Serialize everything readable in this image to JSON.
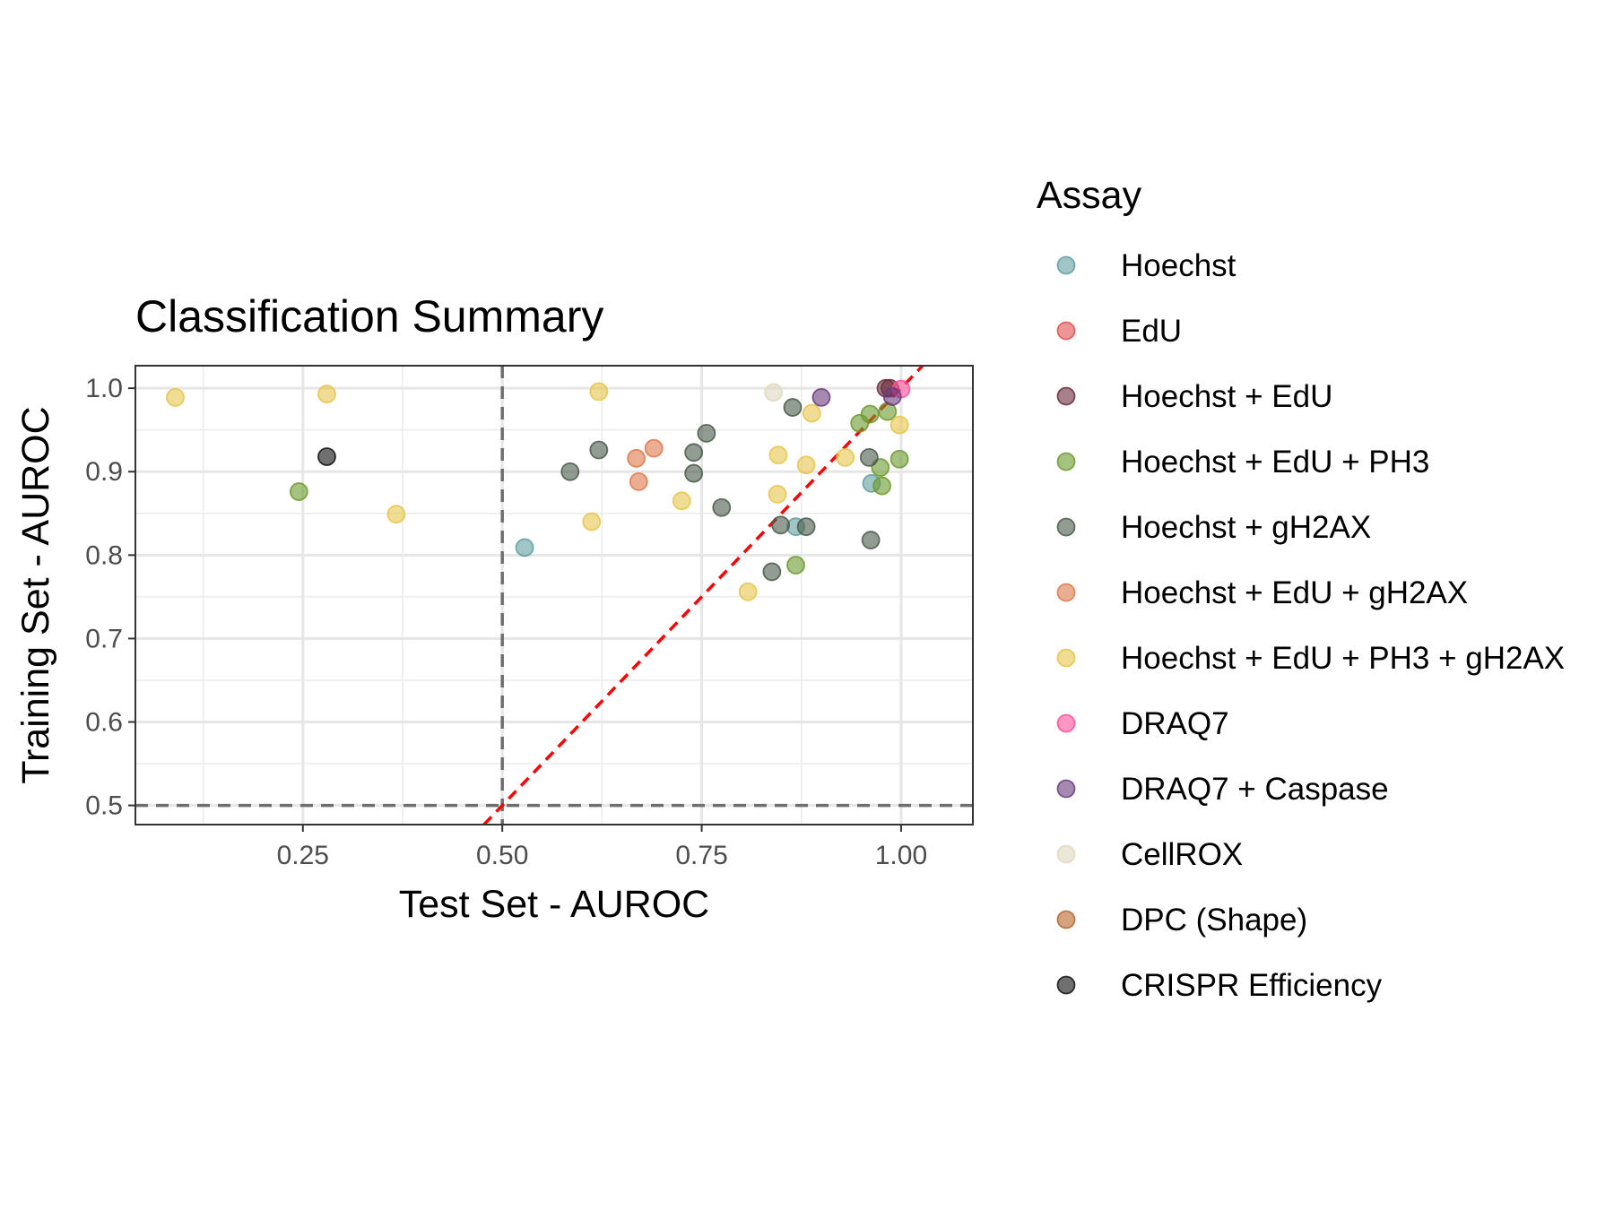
{
  "chart_data": {
    "type": "scatter",
    "title": "Classification Summary",
    "xlabel": "Test Set - AUROC",
    "ylabel": "Training Set - AUROC",
    "xlim": [
      0.04,
      1.09
    ],
    "ylim": [
      0.477,
      1.027
    ],
    "xticks": [
      0.25,
      0.5,
      0.75,
      1.0
    ],
    "xtick_labels": [
      "0.25",
      "0.50",
      "0.75",
      "1.00"
    ],
    "yticks": [
      0.5,
      0.6,
      0.7,
      0.8,
      0.9,
      1.0
    ],
    "ytick_labels": [
      "0.5",
      "0.6",
      "0.7",
      "0.8",
      "0.9",
      "1.0"
    ],
    "grid": true,
    "reference_lines": {
      "vertical_dashed_x": 0.5,
      "horizontal_dashed_y": 0.5,
      "diagonal_red_dashed": "y = x"
    },
    "legend": {
      "title": "Assay",
      "placement": "right"
    },
    "series": [
      {
        "name": "Hoechst",
        "color": "#5f9ea0",
        "points": [
          [
            0.528,
            0.809
          ],
          [
            0.963,
            0.886
          ],
          [
            0.868,
            0.834
          ]
        ]
      },
      {
        "name": "EdU",
        "color": "#e05050",
        "points": []
      },
      {
        "name": "Hoechst + EdU",
        "color": "#6b2c3c",
        "points": [
          [
            0.981,
            1.0
          ],
          [
            0.986,
            1.0
          ]
        ]
      },
      {
        "name": "Hoechst + EdU + PH3",
        "color": "#6b9a2c",
        "points": [
          [
            0.245,
            0.876
          ],
          [
            0.948,
            0.958
          ],
          [
            0.961,
            0.969
          ],
          [
            0.983,
            0.972
          ],
          [
            0.974,
            0.905
          ],
          [
            0.976,
            0.883
          ],
          [
            0.998,
            0.915
          ],
          [
            0.868,
            0.788
          ]
        ]
      },
      {
        "name": "Hoechst + gH2AX",
        "color": "#4a5a4a",
        "points": [
          [
            0.585,
            0.9
          ],
          [
            0.621,
            0.926
          ],
          [
            0.74,
            0.923
          ],
          [
            0.756,
            0.946
          ],
          [
            0.74,
            0.898
          ],
          [
            0.775,
            0.857
          ],
          [
            0.864,
            0.977
          ],
          [
            0.849,
            0.836
          ],
          [
            0.881,
            0.834
          ],
          [
            0.838,
            0.78
          ],
          [
            0.96,
            0.917
          ],
          [
            0.962,
            0.818
          ]
        ]
      },
      {
        "name": "Hoechst + EdU + gH2AX",
        "color": "#e0784a",
        "points": [
          [
            0.668,
            0.916
          ],
          [
            0.69,
            0.928
          ],
          [
            0.671,
            0.888
          ]
        ]
      },
      {
        "name": "Hoechst + EdU + PH3 + gH2AX",
        "color": "#e6c44a",
        "points": [
          [
            0.09,
            0.989
          ],
          [
            0.28,
            0.993
          ],
          [
            0.367,
            0.849
          ],
          [
            0.621,
            0.996
          ],
          [
            0.612,
            0.84
          ],
          [
            0.725,
            0.865
          ],
          [
            0.846,
            0.92
          ],
          [
            0.845,
            0.873
          ],
          [
            0.881,
            0.908
          ],
          [
            0.888,
            0.97
          ],
          [
            0.93,
            0.917
          ],
          [
            0.998,
            0.956
          ],
          [
            0.808,
            0.756
          ]
        ]
      },
      {
        "name": "DRAQ7",
        "color": "#ff4f9a",
        "points": [
          [
            1.0,
            0.999
          ]
        ]
      },
      {
        "name": "DRAQ7 + Caspase",
        "color": "#6a3b7c",
        "points": [
          [
            0.9,
            0.989
          ],
          [
            0.989,
            0.99
          ]
        ]
      },
      {
        "name": "CellROX",
        "color": "#e0d8c0",
        "points": [
          [
            0.84,
            0.995
          ]
        ]
      },
      {
        "name": "DPC (Shape)",
        "color": "#b8662a",
        "points": []
      },
      {
        "name": "CRISPR Efficiency",
        "color": "#111111",
        "points": [
          [
            0.28,
            0.918
          ]
        ]
      }
    ]
  }
}
